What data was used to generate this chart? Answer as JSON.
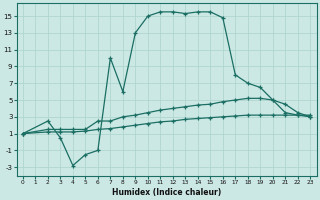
{
  "xlabel": "Humidex (Indice chaleur)",
  "background_color": "#cce8e4",
  "grid_color": "#b0d5cf",
  "line_color": "#1a6e63",
  "xlim": [
    -0.5,
    23.5
  ],
  "ylim": [
    -4.0,
    16.5
  ],
  "xticks": [
    0,
    1,
    2,
    3,
    4,
    5,
    6,
    7,
    8,
    9,
    10,
    11,
    12,
    13,
    14,
    15,
    16,
    17,
    18,
    19,
    20,
    21,
    22,
    23
  ],
  "yticks": [
    -3,
    -1,
    1,
    3,
    5,
    7,
    9,
    11,
    13,
    15
  ],
  "line1_x": [
    0,
    2,
    3,
    4,
    5,
    6,
    7,
    8,
    9,
    10,
    11,
    12,
    13,
    14,
    15,
    16,
    17,
    18,
    19,
    20,
    21,
    22,
    23
  ],
  "line1_y": [
    1.0,
    2.5,
    0.5,
    -2.8,
    -1.5,
    -1.0,
    10.0,
    6.0,
    13.0,
    15.0,
    15.5,
    15.5,
    15.3,
    15.5,
    15.5,
    14.8,
    8.0,
    7.0,
    6.5,
    5.0,
    3.5,
    3.2,
    3.0
  ],
  "line2_x": [
    0,
    2,
    3,
    4,
    5,
    6,
    7,
    8,
    9,
    10,
    11,
    12,
    13,
    14,
    15,
    16,
    17,
    18,
    19,
    20,
    21,
    22,
    23
  ],
  "line2_y": [
    1.0,
    1.5,
    1.5,
    1.5,
    1.5,
    2.5,
    2.5,
    3.0,
    3.2,
    3.5,
    3.8,
    4.0,
    4.2,
    4.4,
    4.5,
    4.8,
    5.0,
    5.2,
    5.2,
    5.0,
    4.5,
    3.5,
    3.0
  ],
  "line3_x": [
    0,
    2,
    3,
    4,
    5,
    6,
    7,
    8,
    9,
    10,
    11,
    12,
    13,
    14,
    15,
    16,
    17,
    18,
    19,
    20,
    21,
    22,
    23
  ],
  "line3_y": [
    1.0,
    1.2,
    1.2,
    1.2,
    1.3,
    1.5,
    1.6,
    1.8,
    2.0,
    2.2,
    2.4,
    2.5,
    2.7,
    2.8,
    2.9,
    3.0,
    3.1,
    3.2,
    3.2,
    3.2,
    3.2,
    3.2,
    3.2
  ]
}
